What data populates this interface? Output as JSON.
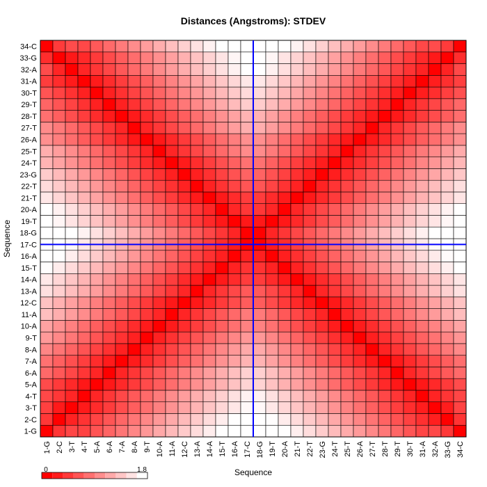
{
  "chart_data": {
    "type": "heatmap",
    "title": "Distances (Angstroms):  STDEV",
    "xlabel": "Sequence",
    "ylabel": "Sequence",
    "labels": [
      "1-G",
      "2-C",
      "3-T",
      "4-T",
      "5-A",
      "6-A",
      "7-A",
      "8-A",
      "9-T",
      "10-A",
      "11-A",
      "12-C",
      "13-A",
      "14-A",
      "15-T",
      "16-A",
      "17-C",
      "18-G",
      "19-T",
      "20-A",
      "21-T",
      "22-T",
      "23-G",
      "24-T",
      "25-T",
      "26-A",
      "27-T",
      "28-T",
      "29-T",
      "30-T",
      "31-A",
      "32-A",
      "33-G",
      "34-C"
    ],
    "colorbar": {
      "min_label": "0",
      "max_label": "1.8",
      "min": 0,
      "max": 1.8
    },
    "colors": {
      "low": "#ff0000",
      "high": "#ffffff",
      "grid": "#000000",
      "highlight": "#0000ff"
    },
    "highlight_index": 17
  }
}
